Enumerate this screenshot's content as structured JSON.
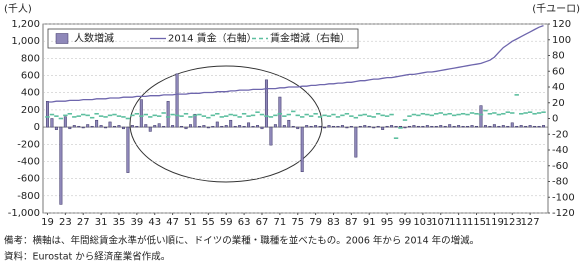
{
  "chart_data": {
    "type": "combo",
    "y_label": "(千人)",
    "y2_label": "(千ユーロ)",
    "x": [
      19,
      20,
      21,
      22,
      23,
      24,
      25,
      26,
      27,
      28,
      29,
      30,
      31,
      32,
      33,
      34,
      35,
      36,
      37,
      38,
      39,
      40,
      41,
      42,
      43,
      44,
      45,
      46,
      47,
      48,
      49,
      50,
      51,
      52,
      53,
      54,
      55,
      56,
      57,
      58,
      59,
      60,
      61,
      62,
      63,
      64,
      65,
      66,
      67,
      68,
      69,
      70,
      71,
      72,
      73,
      74,
      75,
      76,
      77,
      78,
      79,
      80,
      81,
      82,
      83,
      84,
      85,
      86,
      87,
      88,
      89,
      90,
      91,
      92,
      93,
      94,
      95,
      96,
      97,
      98,
      99,
      100,
      101,
      102,
      103,
      104,
      105,
      106,
      107,
      108,
      109,
      110,
      111,
      112,
      113,
      114,
      115,
      116,
      117,
      118,
      119,
      120,
      121,
      122,
      123,
      124,
      125,
      126,
      127,
      128,
      129,
      130
    ],
    "xlim": [
      18,
      131
    ],
    "xticks": [
      19,
      23,
      27,
      31,
      35,
      39,
      43,
      47,
      51,
      55,
      59,
      63,
      67,
      71,
      75,
      79,
      83,
      87,
      91,
      95,
      99,
      103,
      107,
      111,
      115,
      119,
      123,
      127
    ],
    "ylim": [
      -1000,
      1200
    ],
    "yticks": [
      {
        "value": -1000,
        "label": "-1,000"
      },
      -800,
      -600,
      -400,
      -200,
      0,
      200,
      400,
      600,
      800,
      {
        "value": 1000,
        "label": "1,000"
      },
      {
        "value": 1200,
        "label": "1,200"
      }
    ],
    "y2lim": [
      -120,
      120
    ],
    "y2ticks": [
      -120,
      -100,
      -80,
      -60,
      -40,
      -20,
      0,
      20,
      40,
      60,
      80,
      100,
      120
    ],
    "grid": true,
    "series": [
      {
        "name": "人数増減",
        "type": "bar",
        "color": "#8f88b9",
        "values": [
          300,
          100,
          -30,
          -900,
          120,
          -20,
          20,
          10,
          -10,
          30,
          10,
          80,
          20,
          -10,
          60,
          10,
          20,
          -20,
          -530,
          20,
          10,
          320,
          30,
          -50,
          20,
          40,
          10,
          300,
          20,
          620,
          10,
          -20,
          30,
          150,
          10,
          20,
          -10,
          10,
          60,
          10,
          20,
          80,
          10,
          20,
          10,
          50,
          10,
          20,
          -20,
          550,
          -210,
          30,
          350,
          20,
          80,
          10,
          -20,
          -520,
          20,
          10,
          20,
          10,
          -10,
          20,
          10,
          10,
          20,
          -10,
          10,
          -350,
          10,
          20,
          10,
          -10,
          10,
          -30,
          10,
          20,
          10,
          10,
          -10,
          10,
          20,
          10,
          10,
          20,
          10,
          10,
          20,
          10,
          30,
          10,
          20,
          10,
          10,
          20,
          10,
          250,
          20,
          10,
          30,
          10,
          20,
          10,
          50,
          10,
          20,
          10,
          20,
          10,
          10,
          20
        ]
      },
      {
        "name": "2014 賃金（右軸）",
        "type": "line",
        "axis": "y2",
        "color": "#6e66ad",
        "values": [
          21,
          21,
          22,
          22,
          22,
          23,
          23,
          23,
          24,
          24,
          24,
          25,
          25,
          25,
          26,
          26,
          26,
          27,
          27,
          27,
          28,
          28,
          28,
          29,
          29,
          29,
          30,
          30,
          30,
          31,
          31,
          31,
          32,
          32,
          32,
          33,
          33,
          33,
          34,
          34,
          34,
          35,
          35,
          36,
          36,
          36,
          37,
          37,
          37,
          38,
          38,
          38,
          39,
          39,
          40,
          40,
          40,
          41,
          41,
          42,
          42,
          43,
          43,
          44,
          44,
          45,
          45,
          46,
          46,
          47,
          48,
          48,
          49,
          50,
          50,
          51,
          52,
          52,
          53,
          54,
          55,
          56,
          56,
          57,
          58,
          59,
          59,
          60,
          61,
          62,
          63,
          64,
          65,
          66,
          67,
          68,
          69,
          70,
          72,
          74,
          78,
          84,
          90,
          94,
          98,
          101,
          104,
          107,
          110,
          113,
          116,
          118
        ]
      },
      {
        "name": "賃金増減（右軸）",
        "type": "dash",
        "axis": "y2",
        "color": "#5dbf9f",
        "values": [
          2,
          5,
          3,
          0,
          4,
          6,
          2,
          3,
          5,
          4,
          1,
          6,
          3,
          2,
          4,
          5,
          3,
          2,
          0,
          4,
          6,
          3,
          5,
          2,
          4,
          3,
          7,
          2,
          5,
          4,
          3,
          6,
          2,
          4,
          5,
          3,
          1,
          4,
          6,
          2,
          3,
          5,
          4,
          2,
          6,
          3,
          4,
          8,
          5,
          3,
          2,
          4,
          6,
          3,
          5,
          9,
          4,
          2,
          5,
          3,
          6,
          2,
          4,
          3,
          5,
          2,
          4,
          6,
          3,
          1,
          4,
          5,
          3,
          2,
          6,
          4,
          3,
          5,
          -25,
          -12,
          -2,
          3,
          5,
          4,
          6,
          5,
          4,
          6,
          7,
          5,
          6,
          4,
          5,
          6,
          5,
          7,
          6,
          5,
          10,
          6,
          7,
          5,
          6,
          8,
          7,
          30,
          6,
          7,
          8,
          6,
          7,
          8
        ]
      }
    ],
    "notes": [
      "備考：横軸は、年間総賃金水準が低い順に、ドイツの業種・職種を並べたもの。2006 年から 2014 年の増減。",
      "資料：Eurostat から経済産業省作成。"
    ]
  }
}
